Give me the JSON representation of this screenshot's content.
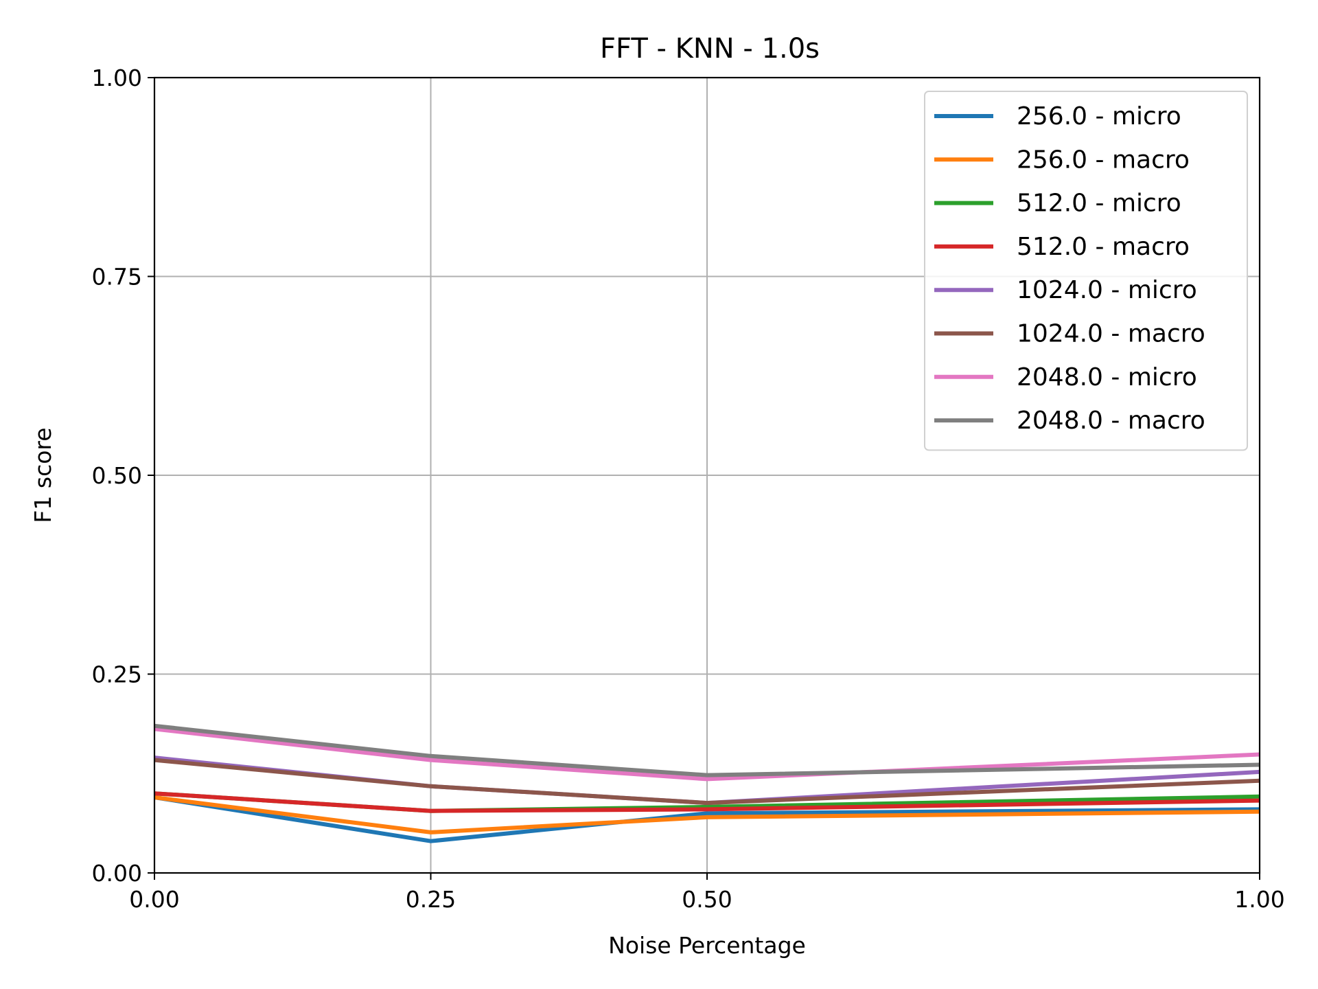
{
  "chart_data": {
    "type": "line",
    "title": "FFT - KNN - 1.0s",
    "xlabel": "Noise Percentage",
    "ylabel": "F1 score",
    "x": [
      0.0,
      0.25,
      0.5,
      1.0
    ],
    "xticks": [
      "0.00",
      "0.25",
      "0.50",
      "1.00"
    ],
    "yticks": [
      "0.00",
      "0.25",
      "0.50",
      "0.75",
      "1.00"
    ],
    "xlim": [
      0,
      1
    ],
    "ylim": [
      0,
      1
    ],
    "grid": true,
    "legend_position": "top-right",
    "series": [
      {
        "name": "256.0 - micro",
        "color": "#1f77b4",
        "values": [
          0.095,
          0.04,
          0.075,
          0.08
        ]
      },
      {
        "name": "256.0 - macro",
        "color": "#ff7f0e",
        "values": [
          0.095,
          0.051,
          0.07,
          0.077
        ]
      },
      {
        "name": "512.0 - micro",
        "color": "#2ca02c",
        "values": [
          0.1,
          0.078,
          0.083,
          0.096
        ]
      },
      {
        "name": "512.0 - macro",
        "color": "#d62728",
        "values": [
          0.1,
          0.078,
          0.08,
          0.091
        ]
      },
      {
        "name": "1024.0 - micro",
        "color": "#9467bd",
        "values": [
          0.145,
          0.109,
          0.088,
          0.127
        ]
      },
      {
        "name": "1024.0 - macro",
        "color": "#8c564b",
        "values": [
          0.142,
          0.109,
          0.088,
          0.116
        ]
      },
      {
        "name": "2048.0 - micro",
        "color": "#e377c2",
        "values": [
          0.181,
          0.142,
          0.118,
          0.149
        ]
      },
      {
        "name": "2048.0 - macro",
        "color": "#7f7f7f",
        "values": [
          0.185,
          0.147,
          0.123,
          0.136
        ]
      }
    ]
  }
}
